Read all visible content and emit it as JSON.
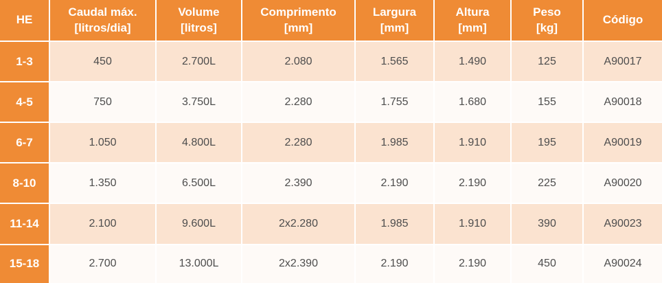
{
  "chart_data": {
    "type": "table",
    "title": "",
    "columns": [
      {
        "name": "he",
        "lines": [
          "HE"
        ]
      },
      {
        "name": "caudal-max",
        "lines": [
          "Caudal máx.",
          "[litros/dia]"
        ]
      },
      {
        "name": "volume",
        "lines": [
          "Volume",
          "[litros]"
        ]
      },
      {
        "name": "comprimento",
        "lines": [
          "Comprimento",
          "[mm]"
        ]
      },
      {
        "name": "largura",
        "lines": [
          "Largura",
          "[mm]"
        ]
      },
      {
        "name": "altura",
        "lines": [
          "Altura",
          "[mm]"
        ]
      },
      {
        "name": "peso",
        "lines": [
          "Peso",
          "[kg]"
        ]
      },
      {
        "name": "codigo",
        "lines": [
          "Código"
        ]
      }
    ],
    "rows": [
      {
        "he": "1-3",
        "cells": [
          "450",
          "2.700L",
          "2.080",
          "1.565",
          "1.490",
          "125",
          "A90017"
        ]
      },
      {
        "he": "4-5",
        "cells": [
          "750",
          "3.750L",
          "2.280",
          "1.755",
          "1.680",
          "155",
          "A90018"
        ]
      },
      {
        "he": "6-7",
        "cells": [
          "1.050",
          "4.800L",
          "2.280",
          "1.985",
          "1.910",
          "195",
          "A90019"
        ]
      },
      {
        "he": "8-10",
        "cells": [
          "1.350",
          "6.500L",
          "2.390",
          "2.190",
          "2.190",
          "225",
          "A90020"
        ]
      },
      {
        "he": "11-14",
        "cells": [
          "2.100",
          "9.600L",
          "2x2.280",
          "1.985",
          "1.910",
          "390",
          "A90023"
        ]
      },
      {
        "he": "15-18",
        "cells": [
          "2.700",
          "13.000L",
          "2x2.390",
          "2.190",
          "2.190",
          "450",
          "A90024"
        ]
      }
    ]
  },
  "colors": {
    "header_orange": "#EF8B35",
    "row_peach": "#FBE3D0",
    "row_light": "#FEFAF7",
    "text_dark": "#4D4D4D",
    "text_white": "#FFFFFF"
  }
}
